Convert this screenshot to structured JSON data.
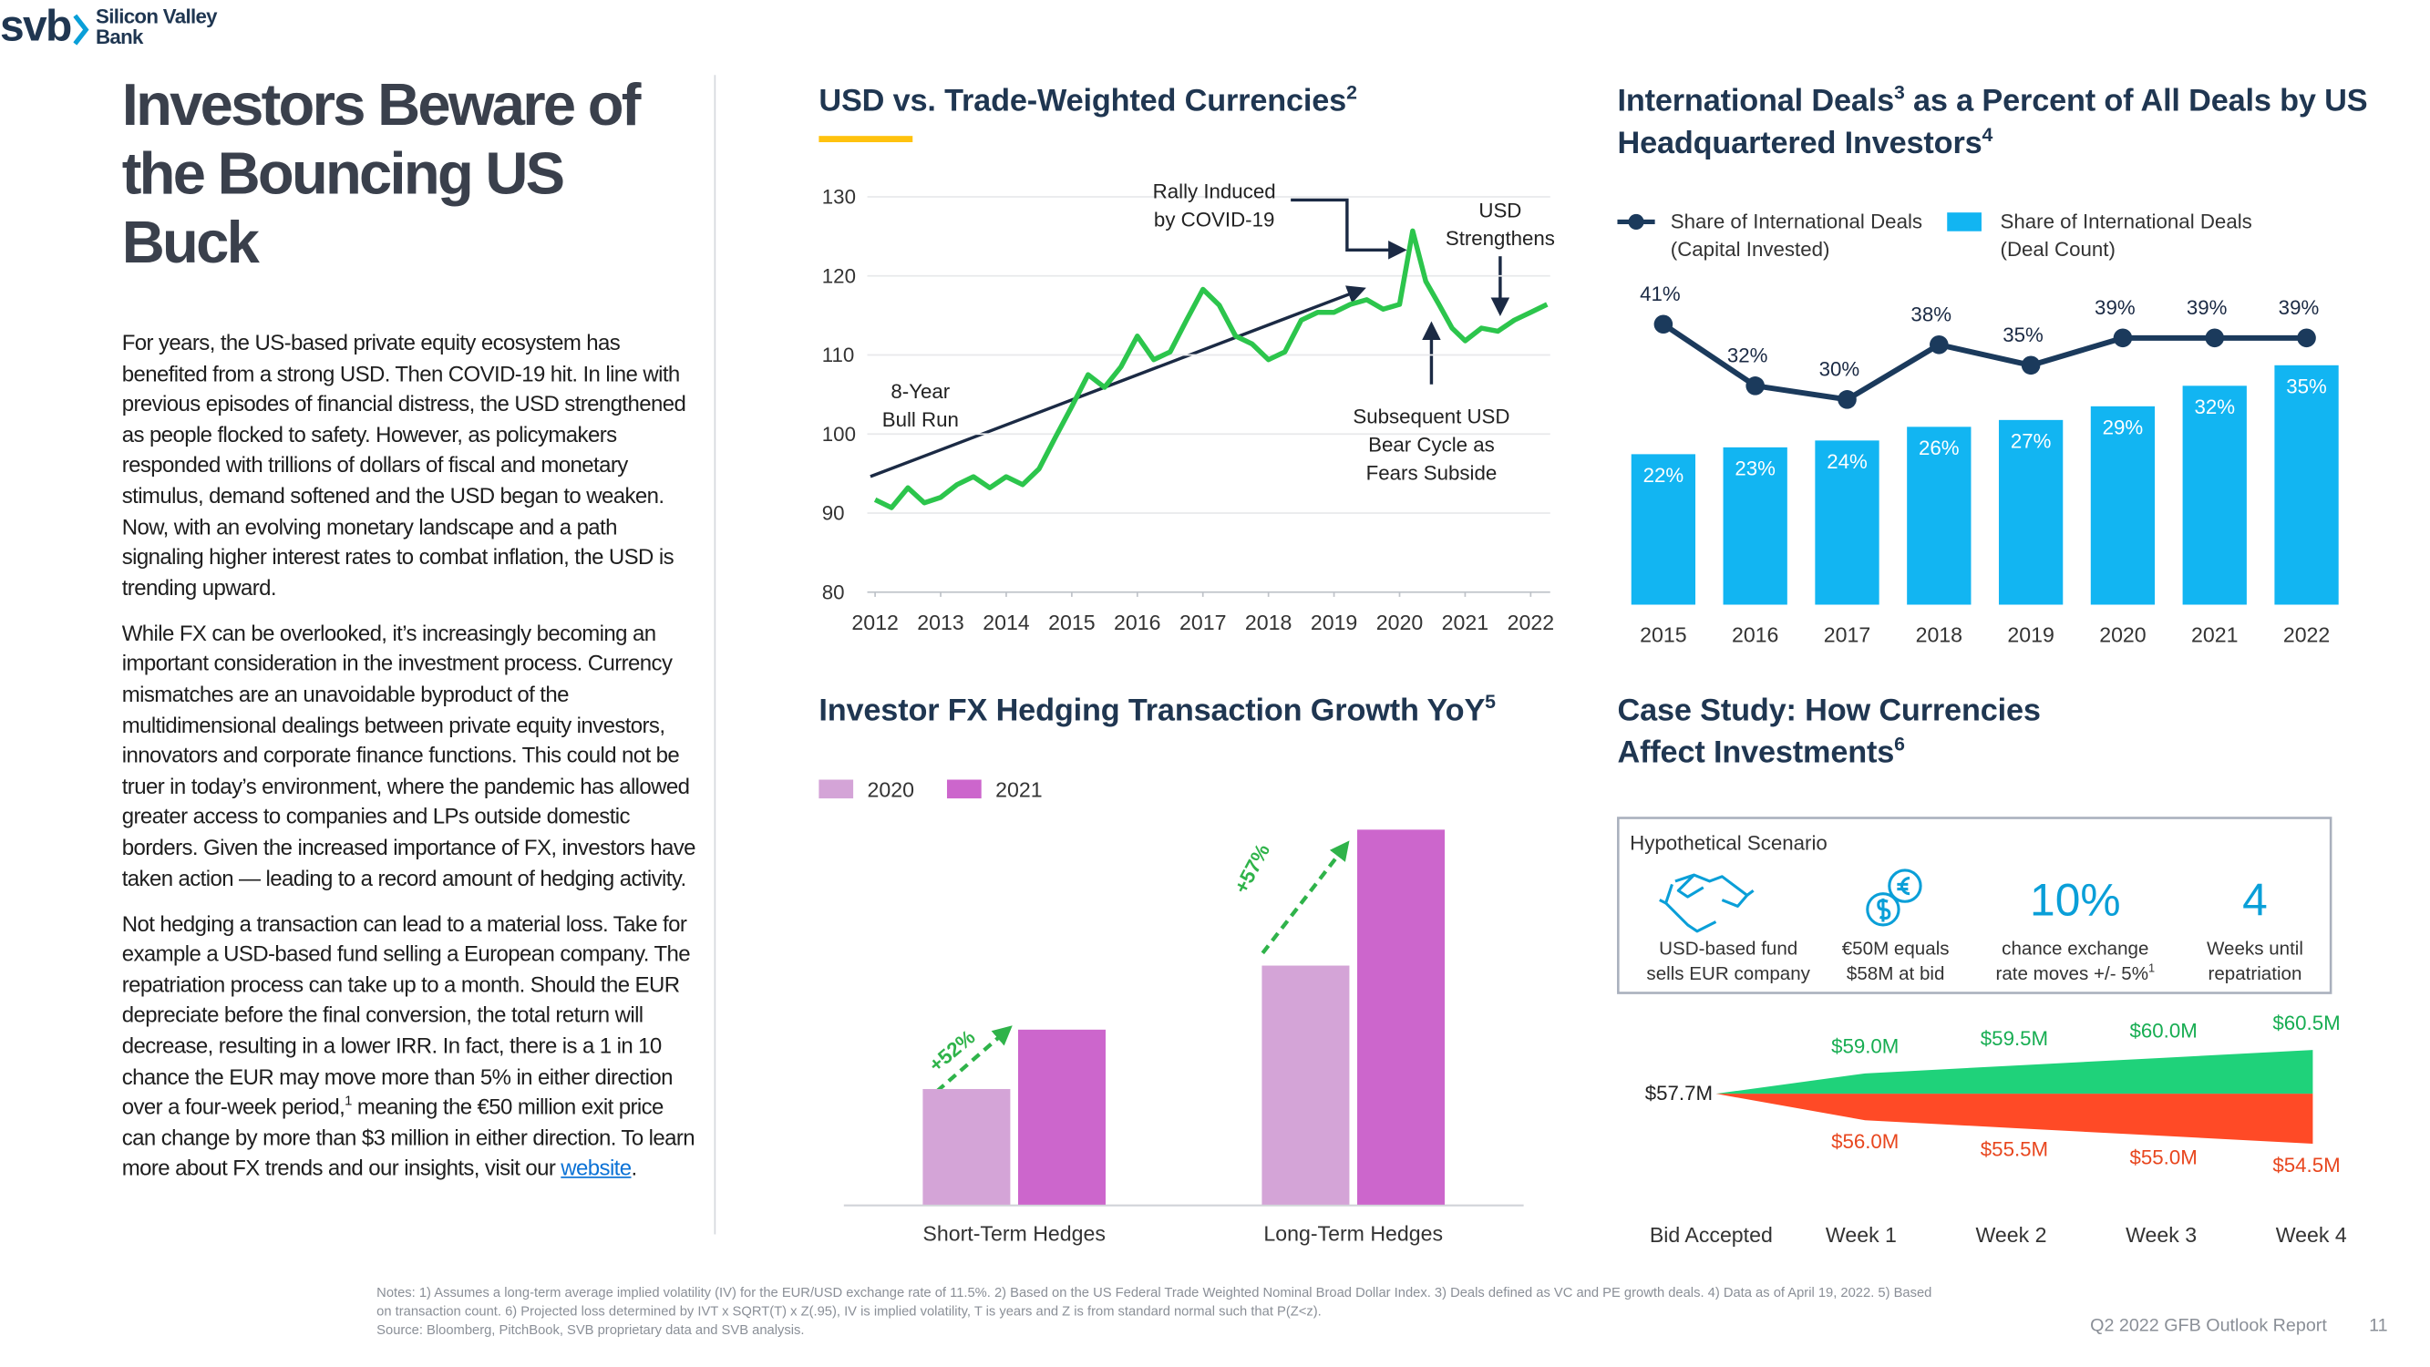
{
  "header": {
    "title": "Investors Beware of the Bouncing US Buck"
  },
  "body": {
    "paragraphs": [
      [
        {
          "text": "For years, the US-based private equity ecosystem has benefited from a strong USD. Then COVID-19 hit. In line with previous episodes of financial distress, the USD strengthened as people flocked to safety. However, as policymakers responded with trillions of dollars of fiscal and monetary stimulus, demand softened and the USD began to weaken. Now, with an evolving monetary landscape and a path signaling higher interest rates to combat inflation, the USD is trending upward."
        }
      ],
      [
        {
          "text": "While FX can be overlooked, it’s increasingly becoming an important consideration in the investment process. Currency mismatches are an unavoidable byproduct of the multidimensional dealings between private equity investors, innovators and corporate finance functions. This could not be truer in today’s environment, where the pandemic has allowed greater access to companies and LPs outside domestic borders. Given the increased importance of FX, investors have taken action — leading to a record amount of hedging activity."
        }
      ],
      [
        {
          "text": "Not hedging a transaction can lead to a material loss. Take for example a USD-based fund selling a European company. The repatriation process can take up to a month. Should the EUR depreciate before the final conversion, the total return will decrease, resulting in a lower IRR. In fact, there is a 1 in 10 chance the EUR may move more than 5% in either direction over a four-week period,"
        },
        {
          "sup": "1"
        },
        {
          "text": " meaning the €50 million exit price can change by more than $3 million in either direction. To learn more about FX trends and our insights, visit our "
        },
        {
          "link": "website"
        },
        {
          "text": "."
        }
      ]
    ]
  },
  "chart_data": [
    {
      "type": "line",
      "title_parts": [
        {
          "text": "USD vs. Trade-Weighted Currencies"
        },
        {
          "sup": "2"
        }
      ],
      "x": [
        2012,
        2012.25,
        2012.5,
        2012.75,
        2013,
        2013.25,
        2013.5,
        2013.75,
        2014,
        2014.25,
        2014.5,
        2014.75,
        2015,
        2015.25,
        2015.5,
        2015.75,
        2016,
        2016.25,
        2016.5,
        2016.75,
        2017,
        2017.25,
        2017.5,
        2017.75,
        2018,
        2018.25,
        2018.5,
        2018.75,
        2019,
        2019.25,
        2019.5,
        2019.75,
        2020,
        2020.2,
        2020.4,
        2020.6,
        2020.8,
        2021,
        2021.25,
        2021.5,
        2021.75,
        2022,
        2022.25
      ],
      "series": [
        {
          "color": "#2cc54c",
          "values": [
            91.7,
            90.7,
            93.2,
            91.3,
            92,
            93.6,
            94.6,
            93.2,
            94.6,
            93.6,
            95.6,
            99.6,
            103.5,
            107.5,
            105.9,
            108.5,
            112.4,
            109.4,
            110.4,
            114.4,
            118.3,
            116.3,
            112.4,
            111.4,
            109.4,
            110.4,
            114.4,
            115.4,
            115.4,
            116.4,
            117,
            115.8,
            116.4,
            125.7,
            119.3,
            116.4,
            113.4,
            111.8,
            113.4,
            113,
            114.4,
            115.4,
            116.4
          ]
        }
      ],
      "xlim": [
        2012,
        2022.25
      ],
      "xticks": [
        2012,
        2013,
        2014,
        2015,
        2016,
        2017,
        2018,
        2019,
        2020,
        2021,
        2022
      ],
      "ylim": [
        80,
        130
      ],
      "yticks": [
        80,
        90,
        100,
        110,
        120,
        130
      ],
      "grid": true,
      "annotations": [
        {
          "lines": [
            "Rally Induced",
            "by COVID-19"
          ]
        },
        {
          "lines": [
            "USD",
            "Strengthens"
          ]
        },
        {
          "lines": [
            "8-Year",
            "Bull Run"
          ]
        },
        {
          "lines": [
            "Subsequent USD",
            "Bear Cycle as",
            "Fears Subside"
          ]
        }
      ]
    },
    {
      "type": "combo",
      "title_parts": [
        {
          "text": "International Deals"
        },
        {
          "sup": "3"
        },
        {
          "text": " as a Percent of All Deals by US Headquartered Investors"
        },
        {
          "sup": "4"
        }
      ],
      "categories": [
        "2015",
        "2016",
        "2017",
        "2018",
        "2019",
        "2020",
        "2021",
        "2022"
      ],
      "series": [
        {
          "name": "Share of International Deals (Capital Invested)",
          "type": "line",
          "color": "#1b3a5c",
          "values": [
            41,
            32,
            30,
            38,
            35,
            39,
            39,
            39
          ],
          "value_labels": [
            "41%",
            "32%",
            "30%",
            "38%",
            "35%",
            "39%",
            "39%",
            "39%"
          ]
        },
        {
          "name": "Share of International Deals (Deal Count)",
          "type": "bar",
          "color": "#12b5f2",
          "values": [
            22,
            23,
            24,
            26,
            27,
            29,
            32,
            35
          ],
          "value_labels": [
            "22%",
            "23%",
            "24%",
            "26%",
            "27%",
            "29%",
            "32%",
            "35%"
          ]
        }
      ],
      "ylim": [
        0,
        45
      ]
    },
    {
      "type": "bar",
      "title_parts": [
        {
          "text": "Investor FX Hedging Transaction Growth YoY"
        },
        {
          "sup": "5"
        }
      ],
      "categories": [
        "Short-Term Hedges",
        "Long-Term Hedges"
      ],
      "series": [
        {
          "name": "2020",
          "color": "#d4a4d7",
          "values": [
            74,
            153
          ]
        },
        {
          "name": "2021",
          "color": "#cc66cc",
          "values": [
            112,
            240
          ]
        }
      ],
      "ylim": [
        0,
        250
      ],
      "annotations": [
        {
          "text": "+52%"
        },
        {
          "text": "+57%"
        }
      ]
    },
    {
      "type": "area",
      "title_parts": [
        {
          "text": "Case Study: How Currencies Affect Investments"
        },
        {
          "sup": "6"
        }
      ],
      "categories": [
        "Bid Accepted",
        "Week 1",
        "Week 2",
        "Week 3",
        "Week 4"
      ],
      "series": [
        {
          "color": "#1fd27a",
          "label_color": "#17ad52",
          "values": [
            57.7,
            59.0,
            59.5,
            60.0,
            60.5
          ],
          "value_labels": [
            "$57.7M",
            "$59.0M",
            "$59.5M",
            "$60.0M",
            "$60.5M"
          ]
        },
        {
          "color": "#ff4a26",
          "label_color": "#e8461e",
          "values": [
            57.7,
            56.0,
            55.5,
            55.0,
            54.5
          ],
          "value_labels": [
            null,
            "$56.0M",
            "$55.5M",
            "$55.0M",
            "$54.5M"
          ]
        }
      ],
      "ylim": [
        53,
        62
      ]
    }
  ],
  "scenario": {
    "title": "Hypothetical Scenario",
    "items": [
      {
        "caption": [
          "USD-based fund",
          "sells EUR company"
        ]
      },
      {
        "caption": [
          "€50M equals",
          "$58M at bid"
        ]
      },
      {
        "headline": "10%",
        "caption": [
          "chance exchange",
          "rate moves +/- 5%"
        ],
        "note": "1"
      },
      {
        "headline": "4",
        "caption": [
          "Weeks until",
          "repatriation"
        ]
      }
    ]
  },
  "footer": {
    "logo": {
      "mark": "svb",
      "name": [
        "Silicon Valley",
        "Bank"
      ]
    },
    "notes": "Notes: 1) Assumes a long-term average implied volatility (IV) for the EUR/USD exchange rate of 11.5%. 2) Based on the US Federal Trade Weighted Nominal Broad Dollar Index. 3) Deals defined as VC and PE growth deals. 4) Data as of April 19, 2022. 5) Based on transaction count. 6) Projected loss determined by IVT x SQRT(T) x Z(.95), IV is implied volatility, T is years and Z is from standard normal such that P(Z<z).",
    "source": "Source: Bloomberg, PitchBook, SVB proprietary data and SVB analysis.",
    "report": "Q2 2022 GFB Outlook Report",
    "page": "11"
  }
}
